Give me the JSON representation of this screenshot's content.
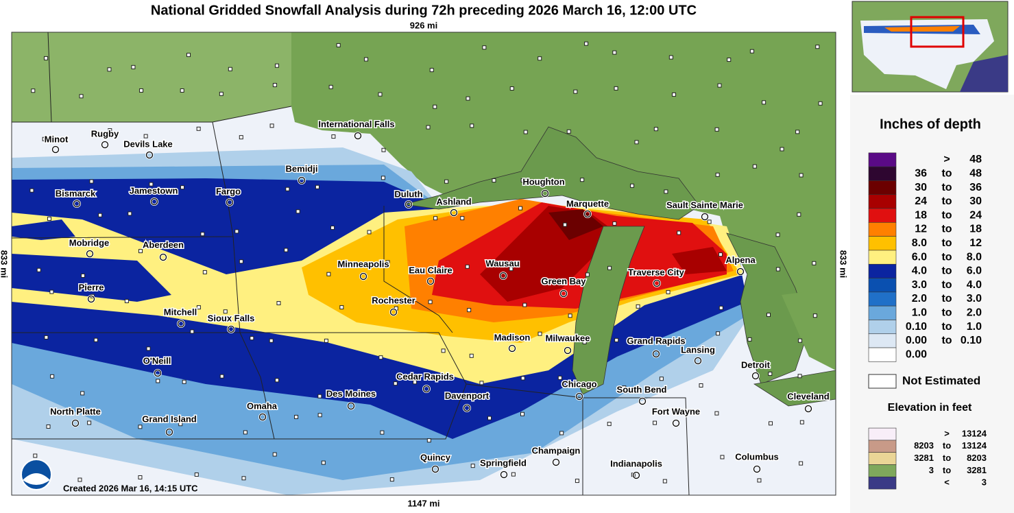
{
  "title": "National Gridded Snowfall Analysis during 72h preceding 2026 March 16, 12:00 UTC",
  "scale": {
    "top": "926 mi",
    "bottom": "1147 mi",
    "left": "833 mi",
    "right": "833 mi"
  },
  "created": "Created 2026 Mar 16, 14:15 UTC",
  "cities": [
    "Minot",
    "Rugby",
    "Devils Lake",
    "Bemidji",
    "International Falls",
    "Bismarck",
    "Jamestown",
    "Fargo",
    "Duluth",
    "Ashland",
    "Houghton",
    "Marquette",
    "Sault Sainte Marie",
    "Mobridge",
    "Aberdeen",
    "Minneapolis",
    "Eau Claire",
    "Wausau",
    "Alpena",
    "Traverse City",
    "Green Bay",
    "Pierre",
    "Rochester",
    "Mitchell",
    "Sioux Falls",
    "Madison",
    "Milwaukee",
    "Grand Rapids",
    "Lansing",
    "O'Neill",
    "Detroit",
    "Cedar Rapids",
    "Chicago",
    "South Bend",
    "Des Moines",
    "Davenport",
    "Omaha",
    "Cleveland",
    "North Platte",
    "Grand Island",
    "Fort Wayne",
    "Quincy",
    "Springfield",
    "Champaign",
    "Indianapolis",
    "Columbus"
  ],
  "legend": {
    "title": "Inches of depth",
    "rows": [
      {
        "sep": ">",
        "high": "48",
        "color": "#5a0a86"
      },
      {
        "low": "36",
        "sep": "to",
        "high": "48",
        "color": "#2e0630"
      },
      {
        "low": "30",
        "sep": "to",
        "high": "36",
        "color": "#6b0000"
      },
      {
        "low": "24",
        "sep": "to",
        "high": "30",
        "color": "#a80000"
      },
      {
        "low": "18",
        "sep": "to",
        "high": "24",
        "color": "#e01010"
      },
      {
        "low": "12",
        "sep": "to",
        "high": "18",
        "color": "#ff8000"
      },
      {
        "low": "8.0",
        "sep": "to",
        "high": "12",
        "color": "#ffc000"
      },
      {
        "low": "6.0",
        "sep": "to",
        "high": "8.0",
        "color": "#fff080"
      },
      {
        "low": "4.0",
        "sep": "to",
        "high": "6.0",
        "color": "#0b24a0"
      },
      {
        "low": "3.0",
        "sep": "to",
        "high": "4.0",
        "color": "#0a50b0"
      },
      {
        "low": "2.0",
        "sep": "to",
        "high": "3.0",
        "color": "#2070c8"
      },
      {
        "low": "1.0",
        "sep": "to",
        "high": "2.0",
        "color": "#6aa8dc"
      },
      {
        "low": "0.10",
        "sep": "to",
        "high": "1.0",
        "color": "#b0d0ea"
      },
      {
        "low": "0.00",
        "sep": "to",
        "high": "0.10",
        "color": "#dde8f4"
      },
      {
        "low": "0.00",
        "color": "#ffffff"
      }
    ],
    "not_estimated": "Not Estimated",
    "elevation_title": "Elevation in feet",
    "elevation_rows": [
      {
        "sep": ">",
        "high": "13124",
        "color": "#f8eef8"
      },
      {
        "low": "8203",
        "sep": "to",
        "high": "13124",
        "color": "#c89a88"
      },
      {
        "low": "3281",
        "sep": "to",
        "high": "8203",
        "color": "#ead596"
      },
      {
        "low": "3",
        "sep": "to",
        "high": "3281",
        "color": "#7fa85c"
      },
      {
        "sep": "<",
        "high": "3",
        "color": "#3a3a86"
      }
    ]
  }
}
